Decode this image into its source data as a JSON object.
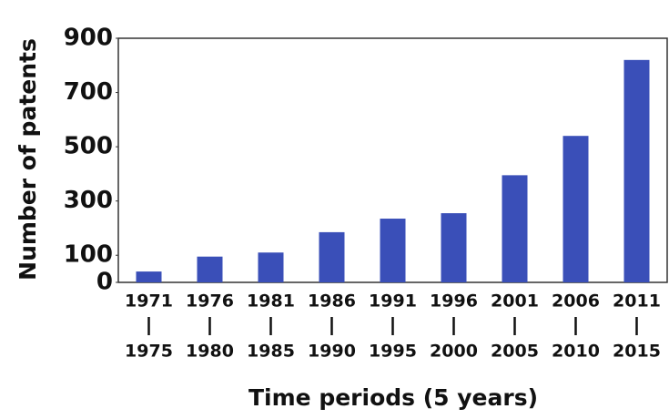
{
  "chart_data": {
    "type": "bar",
    "y_label": "Number of patents",
    "x_label": "Time periods (5 years)",
    "categories": [
      [
        "1971",
        "1975"
      ],
      [
        "1976",
        "1980"
      ],
      [
        "1981",
        "1985"
      ],
      [
        "1986",
        "1990"
      ],
      [
        "1991",
        "1995"
      ],
      [
        "1996",
        "2000"
      ],
      [
        "2001",
        "2005"
      ],
      [
        "2006",
        "2010"
      ],
      [
        "2011",
        "2015"
      ]
    ],
    "values": [
      40,
      95,
      110,
      185,
      235,
      255,
      395,
      540,
      820
    ],
    "color": "#3a4fb8",
    "ylim": [
      0,
      900
    ],
    "yticks": [
      0,
      100,
      300,
      500,
      700,
      900
    ],
    "grid": false
  }
}
